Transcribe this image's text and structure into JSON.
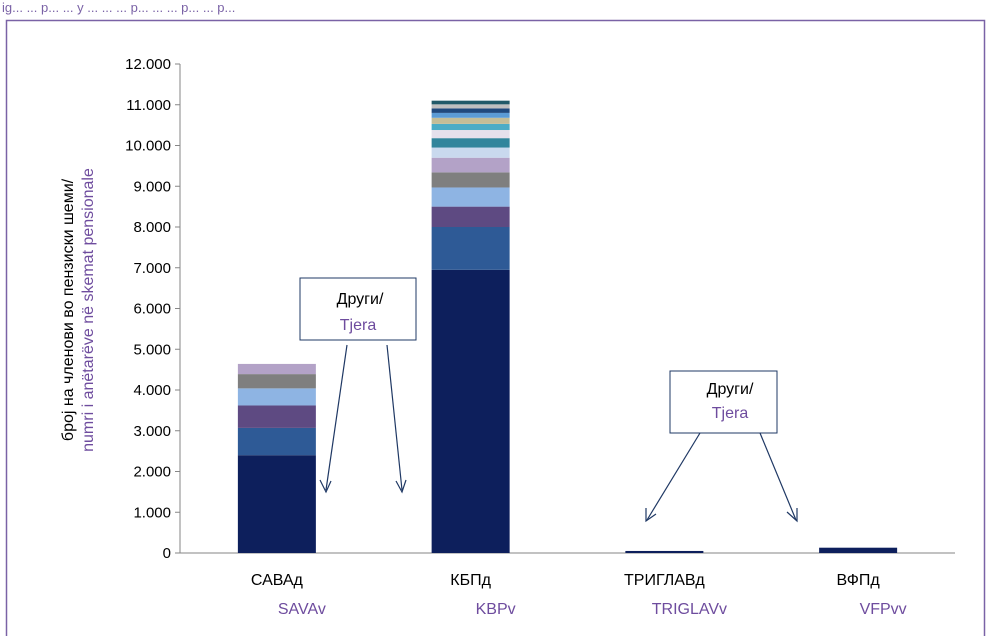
{
  "header_caption": "ig... ... p... ... y ... ... ... p... ... ... p... ... p...",
  "chart_data": {
    "type": "bar",
    "stacked": true,
    "ylabel_lines": [
      "број на членови во пензиски шеми/",
      "numri i anëtarëve në skemat pensionale"
    ],
    "ylim": [
      0,
      12000
    ],
    "yticks": [
      "0",
      "1.000",
      "2.000",
      "3.000",
      "4.000",
      "5.000",
      "6.000",
      "7.000",
      "8.000",
      "9.000",
      "10.000",
      "11.000",
      "12.000"
    ],
    "ytick_values": [
      0,
      1000,
      2000,
      3000,
      4000,
      5000,
      6000,
      7000,
      8000,
      9000,
      10000,
      11000,
      12000
    ],
    "grid": false,
    "categories": [
      {
        "primary": "САВАд",
        "secondary": "SAVAv"
      },
      {
        "primary": "КБПд",
        "secondary": "KBPv"
      },
      {
        "primary": "ТРИГЛАВд",
        "secondary": "TRIGLAVv"
      },
      {
        "primary": "ВФПд",
        "secondary": "VFPvv"
      }
    ],
    "stacks": [
      [
        2400,
        670,
        550,
        420,
        350,
        250
      ],
      [
        6950,
        1050,
        500,
        470,
        370,
        360,
        250,
        230,
        200,
        150,
        150,
        120,
        110,
        100,
        90
      ],
      [
        50
      ],
      [
        130
      ]
    ],
    "segment_colors": [
      "#0d1f5c",
      "#2e5a96",
      "#5e4a82",
      "#8eb4e3",
      "#7f7f7f",
      "#b3a2c7",
      "#c9d9ee",
      "#31859c",
      "#e5e0ec",
      "#4bacc6",
      "#c4bd97",
      "#5b9bd5",
      "#1f497d",
      "#bfbfbf",
      "#215968"
    ],
    "annotations": [
      {
        "line1": "Други/",
        "line2": "Тjera"
      },
      {
        "line1": "Други/",
        "line2": "Tjera"
      }
    ]
  },
  "colors": {
    "frame": "#7a62a6",
    "accent_text": "#6e4c9e",
    "arrow": "#1f3864"
  }
}
